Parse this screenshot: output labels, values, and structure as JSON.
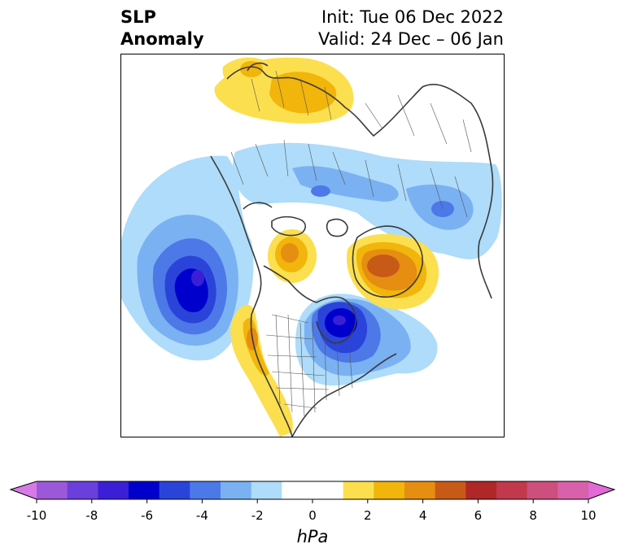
{
  "title": {
    "left_line1": "SLP",
    "left_line2": "Anomaly",
    "right_line1": "Init: Tue 06 Dec 2022",
    "right_line2": "Valid: 24 Dec – 06 Jan"
  },
  "map": {
    "projection": "north-polar-stereographic",
    "region": "Northern Hemisphere (North America, Arctic, Eurasia)",
    "anomaly_centers": [
      {
        "name": "North Pacific low",
        "sign": "negative",
        "min_hpa": -6
      },
      {
        "name": "Eastern Canada / Hudson Bay low",
        "sign": "negative",
        "min_hpa": -6
      },
      {
        "name": "Greenland high",
        "sign": "positive",
        "max_hpa": 5
      },
      {
        "name": "Northern Eurasia high",
        "sign": "positive",
        "max_hpa": 2
      },
      {
        "name": "Arctic Ocean high",
        "sign": "positive",
        "max_hpa": 3
      },
      {
        "name": "Western North America ridge",
        "sign": "positive",
        "max_hpa": 3
      },
      {
        "name": "Northern Europe / Siberia trough",
        "sign": "negative",
        "min_hpa": -3
      }
    ]
  },
  "colorbar": {
    "unit": "hPa",
    "ticks": [
      "-10",
      "-8",
      "-6",
      "-4",
      "-2",
      "0",
      "2",
      "4",
      "6",
      "8",
      "10"
    ],
    "colors": [
      "#9b59d9",
      "#6a3fdb",
      "#3a1fd6",
      "#0000cd",
      "#2a44d9",
      "#4d78e8",
      "#7ab1f2",
      "#aedcfa",
      "#ffffff",
      "#ffffff",
      "#fcdf4f",
      "#f1b50c",
      "#e58e12",
      "#c85a18",
      "#b02727",
      "#c2384d",
      "#cc4f7d",
      "#d960aa"
    ],
    "extend_min_color": "#d67ae6",
    "extend_max_color": "#e26ad6"
  }
}
